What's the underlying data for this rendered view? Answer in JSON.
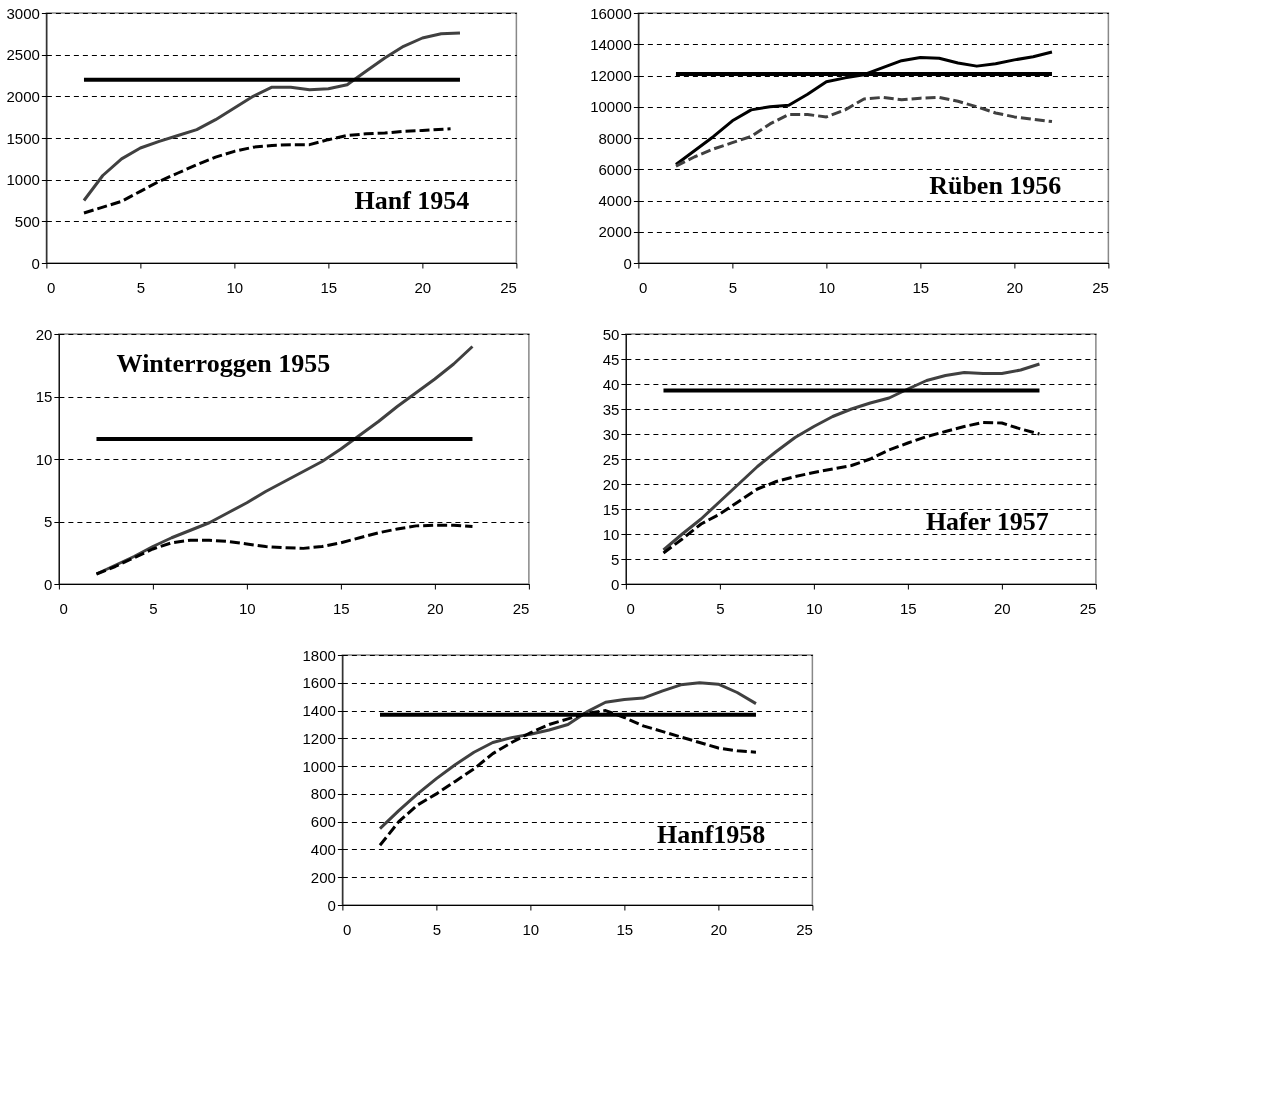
{
  "chart_data": [
    {
      "type": "line",
      "title": "Hanf 1954",
      "xlim": [
        0,
        25
      ],
      "xticks": [
        0,
        5,
        10,
        15,
        20,
        25
      ],
      "ylim": [
        0,
        3000
      ],
      "yticks": [
        0,
        500,
        1000,
        1500,
        2000,
        2500,
        3000
      ],
      "grid": "y",
      "series": [
        {
          "color": "#404040",
          "line_style": "solid",
          "x": [
            2,
            3,
            4,
            5,
            6,
            7,
            8,
            9,
            10,
            11,
            12,
            13,
            14,
            15,
            16,
            17,
            18,
            19,
            20,
            21,
            22
          ],
          "values": [
            750,
            1050,
            1250,
            1380,
            1460,
            1530,
            1600,
            1720,
            1860,
            2000,
            2110,
            2110,
            2080,
            2090,
            2140,
            2300,
            2460,
            2600,
            2700,
            2750,
            2760
          ]
        },
        {
          "color": "#000000",
          "line_style": "dashed",
          "x": [
            2,
            4,
            5,
            6,
            7,
            8,
            9,
            10,
            11,
            12,
            13,
            14,
            15,
            16,
            17,
            18,
            19,
            20,
            21.5
          ],
          "values": [
            600,
            740,
            860,
            980,
            1080,
            1180,
            1270,
            1340,
            1390,
            1410,
            1420,
            1420,
            1480,
            1530,
            1550,
            1560,
            1580,
            1590,
            1610
          ]
        }
      ],
      "ref_lines": [
        {
          "axis": "y",
          "value": 2200,
          "color": "#000000"
        }
      ]
    },
    {
      "type": "line",
      "title": "Rüben 1956",
      "xlim": [
        0,
        25
      ],
      "xticks": [
        0,
        5,
        10,
        15,
        20,
        25
      ],
      "ylim": [
        0,
        16000
      ],
      "yticks": [
        0,
        2000,
        4000,
        6000,
        8000,
        10000,
        12000,
        14000,
        16000
      ],
      "grid": "y",
      "series": [
        {
          "color": "#000000",
          "line_style": "solid",
          "x": [
            2,
            3,
            4,
            5,
            6,
            7,
            8,
            9,
            10,
            11,
            12,
            13,
            14,
            15,
            16,
            17,
            18,
            19,
            20,
            21,
            22
          ],
          "values": [
            6300,
            7200,
            8100,
            9100,
            9800,
            10000,
            10100,
            10800,
            11600,
            11850,
            12050,
            12500,
            12950,
            13150,
            13100,
            12800,
            12600,
            12750,
            13000,
            13200,
            13500
          ]
        },
        {
          "color": "#404040",
          "line_style": "dashed",
          "x": [
            2,
            3,
            4,
            5,
            6,
            7,
            8,
            9,
            10,
            11,
            12,
            13,
            14,
            15,
            16,
            17,
            18,
            19,
            20,
            21,
            22
          ],
          "values": [
            6200,
            6800,
            7300,
            7700,
            8100,
            8900,
            9500,
            9500,
            9350,
            9800,
            10500,
            10600,
            10450,
            10550,
            10600,
            10350,
            10000,
            9600,
            9350,
            9200,
            9050
          ]
        }
      ],
      "ref_lines": [
        {
          "axis": "y",
          "value": 12100,
          "color": "#000000"
        }
      ]
    },
    {
      "type": "line",
      "title": "Winterroggen 1955",
      "xlim": [
        0,
        25
      ],
      "xticks": [
        0,
        5,
        10,
        15,
        20,
        25
      ],
      "ylim": [
        0,
        20
      ],
      "yticks": [
        0,
        5,
        10,
        15,
        20
      ],
      "grid": "y",
      "series": [
        {
          "color": "#404040",
          "line_style": "solid",
          "x": [
            2,
            3,
            4,
            5,
            6,
            7,
            8,
            9,
            10,
            11,
            12,
            13,
            14,
            15,
            16,
            17,
            18,
            19,
            20,
            21,
            22
          ],
          "values": [
            0.8,
            1.5,
            2.2,
            3.0,
            3.7,
            4.3,
            4.9,
            5.7,
            6.5,
            7.4,
            8.2,
            9.0,
            9.8,
            10.8,
            11.9,
            13.0,
            14.2,
            15.3,
            16.4,
            17.6,
            19.0
          ]
        },
        {
          "color": "#000000",
          "line_style": "dashed",
          "x": [
            2,
            3,
            4,
            5,
            6,
            7,
            8,
            9,
            10,
            11,
            12,
            13,
            14,
            15,
            16,
            17,
            18,
            19,
            20,
            21,
            22
          ],
          "values": [
            0.8,
            1.4,
            2.1,
            2.8,
            3.3,
            3.5,
            3.5,
            3.4,
            3.2,
            3.0,
            2.9,
            2.85,
            3.0,
            3.3,
            3.7,
            4.1,
            4.4,
            4.65,
            4.7,
            4.7,
            4.6
          ]
        }
      ],
      "ref_lines": [
        {
          "axis": "y",
          "value": 11.6,
          "color": "#000000"
        }
      ]
    },
    {
      "type": "line",
      "title": "Hafer 1957",
      "xlim": [
        0,
        25
      ],
      "xticks": [
        0,
        5,
        10,
        15,
        20,
        25
      ],
      "ylim": [
        0,
        50
      ],
      "yticks": [
        0,
        5,
        10,
        15,
        20,
        25,
        30,
        35,
        40,
        45,
        50
      ],
      "grid": "y",
      "series": [
        {
          "color": "#404040",
          "line_style": "solid",
          "x": [
            2,
            3,
            4,
            5,
            6,
            7,
            8,
            9,
            10,
            11,
            12,
            13,
            14,
            15,
            16,
            17,
            18,
            19,
            20,
            21,
            22
          ],
          "values": [
            6.8,
            10,
            13,
            16.5,
            20,
            23.5,
            26.5,
            29.3,
            31.5,
            33.5,
            35,
            36.2,
            37.2,
            39,
            40.7,
            41.7,
            42.3,
            42.1,
            42.1,
            42.8,
            44
          ]
        },
        {
          "color": "#000000",
          "line_style": "dashed",
          "x": [
            2,
            3,
            4,
            5,
            6,
            7,
            8,
            9,
            10,
            11,
            12,
            13,
            14,
            15,
            16,
            17,
            18,
            19,
            20,
            21,
            22
          ],
          "values": [
            6.2,
            9,
            12,
            14,
            16.5,
            19,
            20.5,
            21.5,
            22.3,
            23,
            23.7,
            25,
            26.8,
            28.2,
            29.5,
            30.5,
            31.5,
            32.3,
            32.2,
            31,
            30
          ]
        }
      ],
      "ref_lines": [
        {
          "axis": "y",
          "value": 38.7,
          "color": "#000000"
        }
      ]
    },
    {
      "type": "line",
      "title": "Hanf1958",
      "xlim": [
        0,
        25
      ],
      "xticks": [
        0,
        5,
        10,
        15,
        20,
        25
      ],
      "ylim": [
        0,
        1800
      ],
      "yticks": [
        0,
        200,
        400,
        600,
        800,
        1000,
        1200,
        1400,
        1600,
        1800
      ],
      "grid": "y",
      "series": [
        {
          "color": "#404040",
          "line_style": "solid",
          "x": [
            2,
            3,
            4,
            5,
            6,
            7,
            8,
            9,
            10,
            11,
            12,
            13,
            14,
            15,
            16,
            17,
            18,
            19,
            20,
            21,
            22
          ],
          "values": [
            550,
            680,
            800,
            910,
            1010,
            1100,
            1170,
            1205,
            1230,
            1260,
            1300,
            1390,
            1460,
            1480,
            1490,
            1540,
            1585,
            1600,
            1590,
            1530,
            1450
          ]
        },
        {
          "color": "#000000",
          "line_style": "dashed",
          "x": [
            2,
            3,
            4,
            5,
            6,
            7,
            8,
            9,
            10,
            11,
            12,
            13,
            14,
            15,
            16,
            17,
            18,
            19,
            20,
            21,
            22
          ],
          "values": [
            430,
            600,
            720,
            800,
            890,
            980,
            1090,
            1170,
            1240,
            1300,
            1340,
            1380,
            1400,
            1350,
            1290,
            1250,
            1210,
            1170,
            1130,
            1110,
            1100
          ]
        }
      ],
      "ref_lines": [
        {
          "axis": "y",
          "value": 1370,
          "color": "#000000"
        }
      ]
    }
  ]
}
